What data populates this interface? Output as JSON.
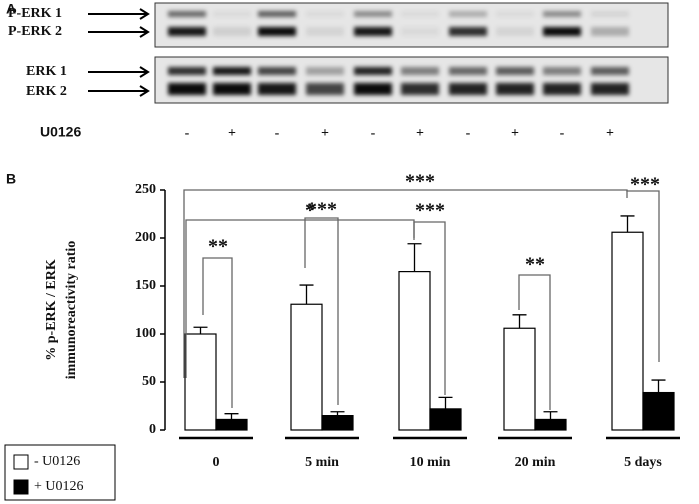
{
  "panel_labels": [
    "A",
    "B"
  ],
  "blot": {
    "top_labels": [
      "P-ERK 1",
      "P-ERK 2"
    ],
    "bottom_labels": [
      "ERK 1",
      "ERK 2"
    ],
    "treatment_label": "U0126",
    "lanes": [
      "-",
      "+",
      "-",
      "+",
      "-",
      "+",
      "-",
      "+",
      "-",
      "+"
    ]
  },
  "chart_data": {
    "type": "bar",
    "y_label": [
      "% p-ERK / ERK",
      "immunoreactivity ratio"
    ],
    "categories": [
      "0",
      "5 min",
      "10 min",
      "20 min",
      "5 days"
    ],
    "series": [
      {
        "name": "- U0126",
        "color": "#ffffff",
        "values": [
          100,
          131,
          165,
          106,
          206
        ],
        "errors": [
          7,
          20,
          29,
          14,
          17
        ]
      },
      {
        "name": "+ U0126",
        "color": "#000000",
        "values": [
          11,
          15,
          22,
          11,
          39
        ],
        "errors": [
          6,
          4,
          12,
          8,
          13
        ]
      }
    ],
    "ylim": [
      0,
      250
    ],
    "yticks": [
      0,
      50,
      100,
      150,
      200,
      250
    ],
    "annotations": [
      "**",
      "***",
      "***",
      "**",
      "***",
      "*",
      "***"
    ],
    "legend": "bottom-left"
  }
}
